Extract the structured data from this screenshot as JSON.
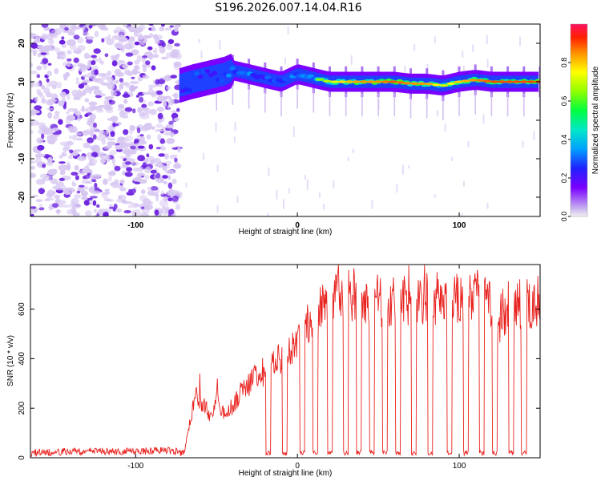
{
  "page_title": "S196.2026.007.14.04.R16",
  "colors": {
    "snr_line": "#e8221e",
    "spectrogram_background": "#ffffff",
    "noise_light": "#d7c7f2",
    "noise_dark": "#6a1fe0"
  },
  "chart_data": [
    {
      "type": "heatmap",
      "name": "spectrogram",
      "title": "",
      "xlabel": "Height of straight line (km)",
      "ylabel": "Frequency (Hz)",
      "xlim": [
        -165,
        150
      ],
      "ylim": [
        -25,
        25
      ],
      "x_ticks": [
        -100,
        0,
        100
      ],
      "y_ticks": [
        -20,
        -10,
        0,
        10,
        20
      ],
      "x_tick_labels": [
        "-100",
        "0",
        "100"
      ],
      "y_tick_labels": [
        "-20",
        "-10",
        "0",
        "10",
        "20"
      ],
      "signal_onset_km": -73,
      "signal_frequency_hz": 10,
      "colorbar": {
        "label": "Normalized spectral amplitude",
        "range": [
          0.0,
          1.0
        ],
        "ticks": [
          0.0,
          0.2,
          0.4,
          0.6,
          0.8
        ],
        "tick_labels": [
          "0.0",
          "0.2",
          "0.4",
          "0.6",
          "0.8"
        ],
        "colormap": "rainbow"
      },
      "ridge": {
        "x": [
          -73,
          -65,
          -55,
          -45,
          -40,
          -30,
          -20,
          -10,
          0,
          10,
          20,
          30,
          40,
          50,
          60,
          70,
          80,
          90,
          100,
          110,
          120,
          130,
          140,
          148
        ],
        "freq": [
          9,
          10,
          11,
          12,
          13,
          12,
          11,
          10,
          12,
          11,
          10,
          10,
          10,
          10,
          10,
          9.5,
          9.5,
          9,
          10,
          10.5,
          10,
          10,
          10,
          10
        ],
        "amplitude": [
          0.35,
          0.45,
          0.4,
          0.45,
          0.5,
          0.55,
          0.45,
          0.5,
          0.55,
          0.6,
          0.7,
          0.8,
          0.85,
          0.85,
          0.9,
          0.85,
          0.85,
          0.7,
          0.8,
          0.85,
          0.9,
          0.9,
          0.9,
          0.9
        ]
      }
    },
    {
      "type": "line",
      "name": "snr",
      "title": "",
      "xlabel": "Height of straight line (km)",
      "ylabel": "SNR (10 * v/v)",
      "xlim": [
        -165,
        150
      ],
      "ylim": [
        0,
        780
      ],
      "x_ticks": [
        -100,
        0,
        100
      ],
      "y_ticks": [
        0,
        200,
        400,
        600
      ],
      "x_tick_labels": [
        "-100",
        "0",
        "100"
      ],
      "y_tick_labels": [
        "0",
        "200",
        "400",
        "600"
      ],
      "series": [
        {
          "name": "SNR",
          "x": [
            -165,
            -140,
            -110,
            -80,
            -70,
            -67,
            -63,
            -58,
            -54,
            -50,
            -45,
            -40,
            -35,
            -30,
            -25,
            -20,
            -15,
            -10,
            -5,
            0,
            5,
            10,
            15,
            20,
            25,
            30,
            40,
            50,
            60,
            70,
            80,
            90,
            100,
            110,
            115,
            120,
            125,
            130,
            140,
            148
          ],
          "values": [
            20,
            25,
            25,
            30,
            20,
            120,
            250,
            210,
            170,
            230,
            180,
            210,
            260,
            300,
            330,
            350,
            380,
            400,
            420,
            460,
            520,
            560,
            600,
            630,
            660,
            670,
            650,
            640,
            630,
            630,
            650,
            640,
            650,
            660,
            640,
            610,
            560,
            620,
            630,
            620
          ]
        }
      ],
      "dropouts_km": [
        -18,
        -8,
        3,
        11,
        20,
        30,
        38,
        46,
        54,
        62,
        72,
        82,
        94,
        104,
        114,
        122,
        132,
        140
      ]
    }
  ]
}
